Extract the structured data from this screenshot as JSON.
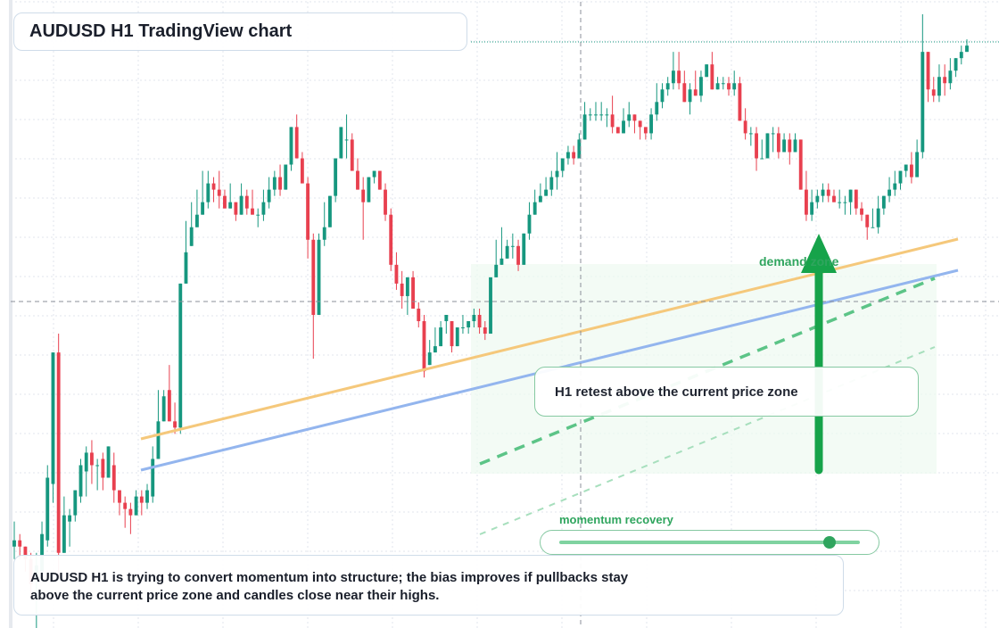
{
  "title": "AUDUSD H1 TradingView chart",
  "callout": "H1 retest above the current price zone",
  "demand_label": "demand zone",
  "momentum": {
    "label": "momentum recovery",
    "level": 0.9
  },
  "summary": {
    "line1": "AUDUSD H1 is trying to convert momentum into structure; the bias improves if pullbacks stay",
    "line2": "above the current price zone and candles close near their highs."
  },
  "colors": {
    "up": "#16977f",
    "down": "#e8404f",
    "grid": "#e1e6ee",
    "ma_fast": "#f5c87b",
    "ma_slow": "#93b5ee",
    "accent": "#16a34a",
    "zone": "#eef9f1"
  },
  "chart_data": {
    "type": "candlestick",
    "symbol": "AUDUSD",
    "timeframe": "H1",
    "ylim": [
      0,
      100
    ],
    "current_price_level": 53,
    "last_price_level": 93.5,
    "candles": [
      [
        13,
        14,
        17,
        11
      ],
      [
        14,
        13,
        15,
        11
      ],
      [
        13,
        11,
        13,
        9
      ],
      [
        11,
        7,
        12,
        5
      ],
      [
        8,
        10,
        12,
        -4
      ],
      [
        9,
        15,
        17,
        8
      ],
      [
        14,
        24,
        26,
        13
      ],
      [
        23,
        44,
        44,
        20
      ],
      [
        44,
        12,
        47,
        8
      ],
      [
        12,
        18,
        21,
        12
      ],
      [
        17,
        18,
        19,
        13
      ],
      [
        18,
        22,
        22,
        17
      ],
      [
        21,
        26,
        27,
        20
      ],
      [
        25,
        28,
        29,
        21
      ],
      [
        28,
        26,
        30,
        23
      ],
      [
        26,
        26,
        27,
        22
      ],
      [
        27,
        24,
        28,
        22
      ],
      [
        24,
        29,
        29,
        24
      ],
      [
        26,
        22,
        28,
        20
      ],
      [
        22,
        20,
        22,
        18
      ],
      [
        20,
        19,
        21,
        16
      ],
      [
        19,
        18,
        20,
        15
      ],
      [
        18,
        21,
        22,
        18
      ],
      [
        21,
        20,
        22,
        18
      ],
      [
        20,
        22,
        23,
        19
      ],
      [
        21,
        27,
        29,
        20
      ],
      [
        27,
        33,
        38,
        28
      ],
      [
        33,
        37,
        38,
        33
      ],
      [
        38,
        33,
        42,
        33
      ],
      [
        33,
        32,
        36,
        31
      ],
      [
        32,
        55,
        55,
        31
      ],
      [
        55,
        60,
        65,
        55
      ],
      [
        61,
        64,
        68,
        61
      ],
      [
        64,
        66,
        70,
        64
      ],
      [
        66,
        68,
        73,
        66
      ],
      [
        68,
        71,
        73,
        67
      ],
      [
        71,
        70,
        72,
        68
      ],
      [
        70,
        69,
        73,
        67
      ],
      [
        69,
        67,
        70,
        67
      ],
      [
        67,
        68,
        71,
        67
      ],
      [
        68,
        66,
        68,
        65
      ],
      [
        66,
        69,
        71,
        66
      ],
      [
        69,
        67,
        70,
        66
      ],
      [
        67,
        66,
        70,
        66
      ],
      [
        66,
        66,
        67,
        64
      ],
      [
        66,
        68,
        70,
        65
      ],
      [
        68,
        70,
        72,
        67
      ],
      [
        70,
        72,
        73,
        69
      ],
      [
        72,
        70,
        74,
        69
      ],
      [
        70,
        74,
        74,
        70
      ],
      [
        74,
        80,
        80,
        73
      ],
      [
        80,
        75,
        82,
        75
      ],
      [
        75,
        71,
        76,
        71
      ],
      [
        71,
        62,
        72,
        59
      ],
      [
        62,
        50,
        63,
        43
      ],
      [
        50,
        62,
        63,
        61
      ],
      [
        62,
        64,
        68,
        61
      ],
      [
        64,
        69,
        69,
        64
      ],
      [
        69,
        75,
        75,
        68
      ],
      [
        75,
        80,
        77,
        75
      ],
      [
        78,
        78,
        82,
        75
      ],
      [
        78,
        73,
        79,
        73
      ],
      [
        73,
        70,
        75,
        70
      ],
      [
        70,
        68,
        72,
        62
      ],
      [
        68,
        72,
        72,
        68
      ],
      [
        72,
        73,
        73,
        71
      ],
      [
        73,
        70,
        73,
        70
      ],
      [
        70,
        66,
        71,
        65
      ],
      [
        66,
        58,
        67,
        57
      ],
      [
        58,
        55,
        60,
        54
      ],
      [
        55,
        53,
        57,
        51
      ],
      [
        53,
        56,
        56,
        50
      ],
      [
        56,
        51,
        57,
        51
      ],
      [
        51,
        49,
        52,
        48
      ],
      [
        49,
        41,
        50,
        40
      ],
      [
        42,
        44,
        46,
        42
      ],
      [
        44,
        45,
        48,
        44
      ],
      [
        45,
        48,
        49,
        47
      ],
      [
        49,
        50,
        50,
        47
      ],
      [
        49,
        45,
        49,
        44
      ],
      [
        45,
        48,
        48,
        45
      ],
      [
        48,
        48,
        50,
        47
      ],
      [
        48,
        49,
        49,
        47
      ],
      [
        49,
        50,
        51,
        48
      ],
      [
        50,
        48,
        51,
        47
      ],
      [
        48,
        47,
        49,
        46
      ],
      [
        47,
        56,
        56,
        47
      ],
      [
        56,
        58,
        62,
        56
      ],
      [
        58,
        59,
        64,
        58
      ],
      [
        59,
        61,
        62,
        59
      ],
      [
        61,
        61,
        63,
        59
      ],
      [
        61,
        58,
        62,
        57
      ],
      [
        58,
        63,
        63,
        58
      ],
      [
        63,
        66,
        68,
        62
      ],
      [
        66,
        68,
        70,
        66
      ],
      [
        68,
        69,
        71,
        68
      ],
      [
        69,
        70,
        72,
        69
      ],
      [
        70,
        72,
        73,
        69
      ],
      [
        72,
        73,
        76,
        70
      ],
      [
        73,
        75,
        75,
        72
      ],
      [
        75,
        76,
        77,
        74
      ],
      [
        76,
        75,
        77,
        74
      ],
      [
        75,
        78,
        79,
        75
      ],
      [
        78,
        82,
        84,
        78
      ],
      [
        82,
        82,
        83,
        81
      ],
      [
        82,
        82,
        84,
        81
      ],
      [
        82,
        82,
        84,
        81
      ],
      [
        82,
        82,
        83,
        80
      ],
      [
        82,
        80,
        85,
        79
      ],
      [
        80,
        79,
        80,
        79
      ],
      [
        79,
        81,
        83,
        79
      ],
      [
        81,
        82,
        84,
        80
      ],
      [
        82,
        81,
        82,
        79
      ],
      [
        81,
        80,
        81,
        78
      ],
      [
        80,
        79,
        80,
        78
      ],
      [
        79,
        82,
        83,
        78
      ],
      [
        82,
        84,
        87,
        81
      ],
      [
        84,
        86,
        87,
        83
      ],
      [
        86,
        87,
        88,
        85
      ],
      [
        87,
        89,
        92,
        86
      ],
      [
        89,
        87,
        92,
        86
      ],
      [
        87,
        84,
        89,
        86
      ],
      [
        84,
        86,
        87,
        82
      ],
      [
        86,
        85,
        89,
        85
      ],
      [
        85,
        88,
        89,
        84
      ],
      [
        88,
        90,
        90,
        88
      ],
      [
        90,
        86,
        92,
        86
      ],
      [
        86,
        87,
        88,
        86
      ],
      [
        87,
        87,
        88,
        86
      ],
      [
        87,
        86,
        88,
        85
      ],
      [
        86,
        87,
        89,
        85
      ],
      [
        87,
        81,
        88,
        81
      ],
      [
        81,
        79,
        83,
        78
      ],
      [
        79,
        79,
        80,
        77
      ],
      [
        79,
        75,
        80,
        73
      ],
      [
        75,
        75,
        78,
        75
      ],
      [
        75,
        79,
        79,
        75
      ],
      [
        79,
        79,
        80,
        76
      ],
      [
        79,
        76,
        80,
        75
      ],
      [
        76,
        78,
        79,
        76
      ],
      [
        78,
        76,
        79,
        74
      ],
      [
        76,
        78,
        79,
        76
      ],
      [
        78,
        70,
        78,
        70
      ],
      [
        70,
        66,
        73,
        65
      ],
      [
        66,
        68,
        70,
        65
      ],
      [
        68,
        69,
        70,
        67
      ],
      [
        69,
        70,
        71,
        68
      ],
      [
        70,
        69,
        71,
        68
      ],
      [
        69,
        68,
        70,
        68
      ],
      [
        68,
        68,
        70,
        67
      ],
      [
        68,
        68,
        69,
        66
      ],
      [
        68,
        70,
        70,
        66
      ],
      [
        70,
        67,
        70,
        66
      ],
      [
        67,
        66,
        68,
        65
      ],
      [
        66,
        64,
        66,
        62
      ],
      [
        64,
        64,
        67,
        64
      ],
      [
        64,
        67,
        69,
        63
      ],
      [
        67,
        69,
        69,
        66
      ],
      [
        69,
        70,
        72,
        68
      ],
      [
        70,
        71,
        73,
        69
      ],
      [
        71,
        73,
        73,
        70
      ],
      [
        73,
        74,
        74,
        72
      ],
      [
        74,
        72,
        76,
        71
      ],
      [
        72,
        76,
        78,
        72
      ],
      [
        76,
        92,
        98,
        75
      ],
      [
        92,
        86,
        92,
        84
      ],
      [
        86,
        85,
        88,
        84
      ],
      [
        85,
        88,
        90,
        84
      ],
      [
        88,
        87,
        90,
        85
      ],
      [
        87,
        89,
        91,
        86
      ],
      [
        89,
        91,
        91,
        88
      ],
      [
        91,
        92,
        93,
        90
      ],
      [
        92,
        93,
        94,
        92
      ]
    ]
  }
}
